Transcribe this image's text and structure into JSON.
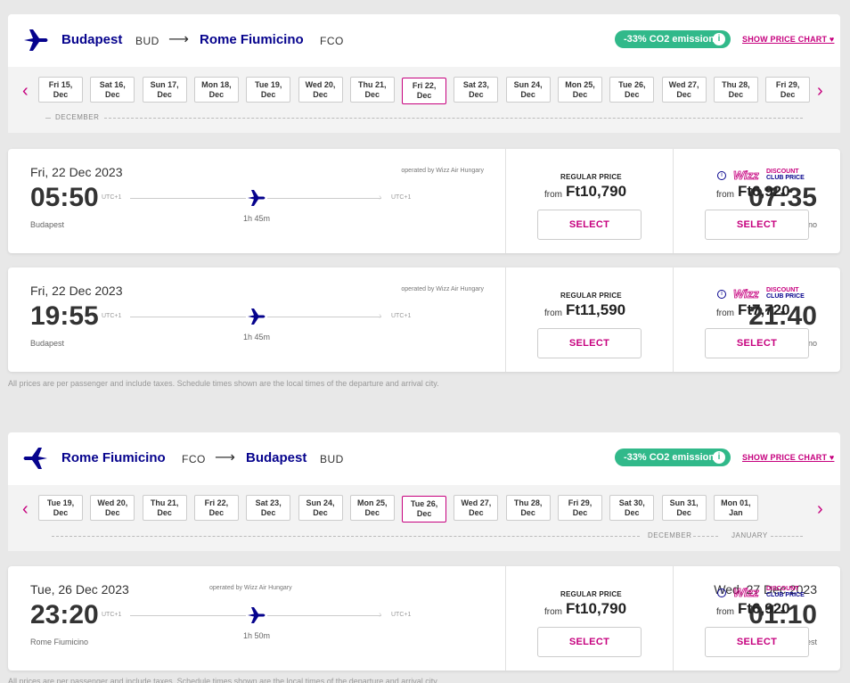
{
  "outbound": {
    "from_city": "Budapest",
    "from_code": "BUD",
    "to_city": "Rome Fiumicino",
    "to_code": "FCO",
    "arrow": "⟶",
    "co2": "-33% CO2 emission",
    "price_chart": "SHOW PRICE CHART ♥",
    "dates": [
      "Fri 15,|Dec",
      "Sat 16,|Dec",
      "Sun 17,|Dec",
      "Mon 18,|Dec",
      "Tue 19,|Dec",
      "Wed 20,|Dec",
      "Thu 21,|Dec",
      "Fri 22,|Dec",
      "Sat 23,|Dec",
      "Sun 24,|Dec",
      "Mon 25,|Dec",
      "Tue 26,|Dec",
      "Wed 27,|Dec",
      "Thu 28,|Dec",
      "Fri 29,|Dec"
    ],
    "month": "DECEMBER",
    "flights": [
      {
        "date": "Fri, 22 Dec 2023",
        "operator": "operated by Wizz Air Hungary",
        "dep": "05:50",
        "arr": "07:35",
        "utc_dep": "UTC+1",
        "utc_arr": "UTC+1",
        "duration": "1h 45m",
        "dep_city": "Budapest",
        "arr_city": "Rome Fiumicino",
        "regular_title": "REGULAR PRICE",
        "from_label": "from",
        "regular": "Ft10,790",
        "club": "Ft6,920",
        "select": "SELECT"
      },
      {
        "date": "Fri, 22 Dec 2023",
        "operator": "operated by Wizz Air Hungary",
        "dep": "19:55",
        "arr": "21:40",
        "utc_dep": "UTC+1",
        "utc_arr": "UTC+1",
        "duration": "1h 45m",
        "dep_city": "Budapest",
        "arr_city": "Rome Fiumicino",
        "regular_title": "REGULAR PRICE",
        "from_label": "from",
        "regular": "Ft11,590",
        "club": "Ft7,720",
        "select": "SELECT"
      }
    ]
  },
  "footnote": "All prices are per passenger and include taxes. Schedule times shown are the local times of the departure and arrival city.",
  "return": {
    "from_city": "Rome Fiumicino",
    "from_code": "FCO",
    "to_city": "Budapest",
    "to_code": "BUD",
    "arrow": "⟶",
    "co2": "-33% CO2 emission",
    "price_chart": "SHOW PRICE CHART ♥",
    "dates": [
      "Tue 19,|Dec",
      "Wed 20,|Dec",
      "Thu 21,|Dec",
      "Fri 22,|Dec",
      "Sat 23,|Dec",
      "Sun 24,|Dec",
      "Mon 25,|Dec",
      "Tue 26,|Dec",
      "Wed 27,|Dec",
      "Thu 28,|Dec",
      "Fri 29,|Dec",
      "Sat 30,|Dec",
      "Sun 31,|Dec",
      "Mon 01,|Jan"
    ],
    "month1": "DECEMBER",
    "month2": "JANUARY",
    "flight": {
      "date": "Tue, 26 Dec 2023",
      "arr_date": "Wed, 27 Dec 2023",
      "operator": "operated by Wizz Air Hungary",
      "dep": "23:20",
      "arr": "01:10",
      "utc_dep": "UTC+1",
      "utc_arr": "UTC+1",
      "duration": "1h 50m",
      "dep_city": "Rome Fiumicino",
      "arr_city": "Budapest",
      "regular_title": "REGULAR PRICE",
      "from_label": "from",
      "regular": "Ft10,790",
      "club": "Ft6,920",
      "select": "SELECT"
    }
  },
  "club_label": {
    "wizz": "Wizz",
    "discount": "DISCOUNT",
    "club_price": "CLUB PRICE",
    "info": "i"
  },
  "nav": {
    "prev": "‹",
    "next": "›"
  },
  "colors": {
    "brand_navy": "#06038d",
    "brand_magenta": "#c6007e",
    "co2_green": "#31b98a"
  }
}
